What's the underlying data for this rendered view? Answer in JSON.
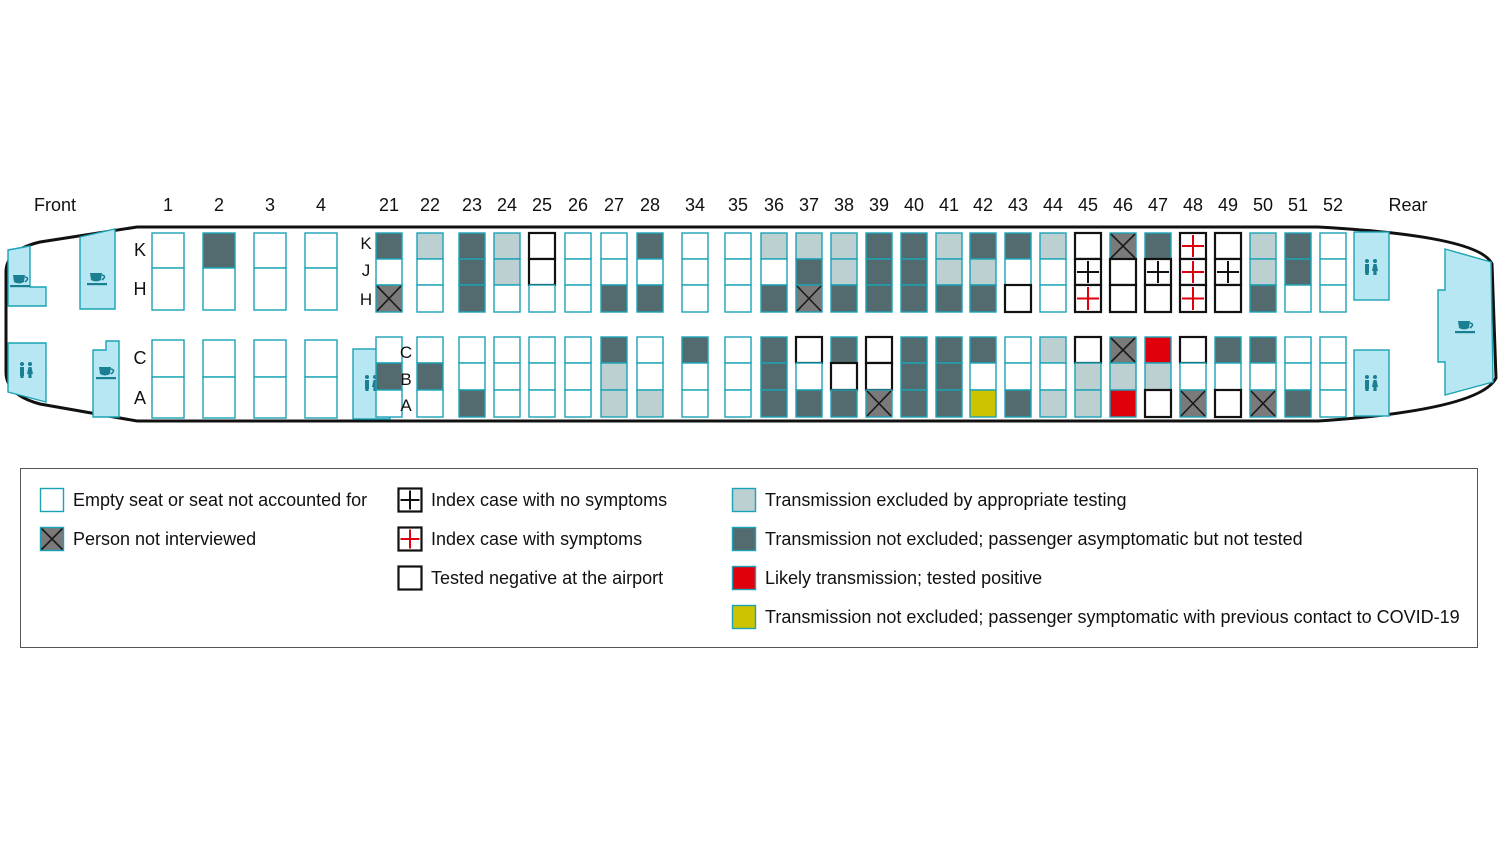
{
  "labels": {
    "front": "Front",
    "rear": "Rear",
    "rows_left": [
      "1",
      "2",
      "3",
      "4"
    ],
    "rows_main": [
      "21",
      "22",
      "23",
      "24",
      "25",
      "26",
      "27",
      "28",
      "34",
      "35",
      "36",
      "37",
      "38",
      "39",
      "40",
      "41",
      "42",
      "43",
      "44",
      "45",
      "46",
      "47",
      "48",
      "49",
      "50",
      "51",
      "52"
    ],
    "letters_front": [
      "K",
      "H",
      "C",
      "A"
    ],
    "letters_main": [
      "K",
      "J",
      "H",
      "C",
      "B",
      "A"
    ]
  },
  "colors": {
    "empty_outline": "#1aa3b5",
    "not_excluded_dark": "#536b6f",
    "excluded_light": "#bccfd1",
    "positive_red": "#e0000d",
    "symptomatic_yellow": "#cdc300",
    "not_interviewed": "#7a7a7a",
    "galley_fill": "#b7e7f2"
  },
  "icons": {
    "galley": "cup-icon",
    "lavatory": "restroom-icon"
  },
  "status_codes": {
    "e": "Empty seat or seat not accounted for",
    "x": "Person not interviewed",
    "i": "Index case with no symptoms",
    "s": "Index case with symptoms",
    "n": "Tested negative at the airport",
    "g": "Transmission excluded by appropriate testing",
    "d": "Transmission not excluded; passenger asymptomatic but not tested",
    "r": "Likely transmission; tested positive",
    "y": "Transmission not excluded; passenger symptomatic with previous contact to COVID-19"
  },
  "front_seats": {
    "1": {
      "K": "e",
      "H": "e",
      "C": "e",
      "A": "e"
    },
    "2": {
      "K": "d",
      "H": "e",
      "C": "e",
      "A": "e"
    },
    "3": {
      "K": "e",
      "H": "e",
      "C": "e",
      "A": "e"
    },
    "4": {
      "K": "e",
      "H": "e",
      "C": "e",
      "A": "e"
    }
  },
  "seats": {
    "21": {
      "K": "d",
      "J": "e",
      "H": "x",
      "C": "e",
      "B": "d",
      "A": "e"
    },
    "22": {
      "K": "g",
      "J": "e",
      "H": "e",
      "C": "e",
      "B": "d",
      "A": "e"
    },
    "23": {
      "K": "d",
      "J": "d",
      "H": "d",
      "C": "e",
      "B": "e",
      "A": "d"
    },
    "24": {
      "K": "g",
      "J": "g",
      "H": "e",
      "C": "e",
      "B": "e",
      "A": "e"
    },
    "25": {
      "K": "n",
      "J": "n",
      "H": "e",
      "C": "e",
      "B": "e",
      "A": "e"
    },
    "26": {
      "K": "e",
      "J": "e",
      "H": "e",
      "C": "e",
      "B": "e",
      "A": "e"
    },
    "27": {
      "K": "e",
      "J": "e",
      "H": "d",
      "C": "d",
      "B": "g",
      "A": "g"
    },
    "28": {
      "K": "d",
      "J": "e",
      "H": "d",
      "C": "e",
      "B": "e",
      "A": "g"
    },
    "34": {
      "K": "e",
      "J": "e",
      "H": "e",
      "C": "d",
      "B": "e",
      "A": "e"
    },
    "35": {
      "K": "e",
      "J": "e",
      "H": "e",
      "C": "e",
      "B": "e",
      "A": "e"
    },
    "36": {
      "K": "g",
      "J": "e",
      "H": "d",
      "C": "d",
      "B": "d",
      "A": "d"
    },
    "37": {
      "K": "g",
      "J": "d",
      "H": "x",
      "C": "n",
      "B": "e",
      "A": "d"
    },
    "38": {
      "K": "g",
      "J": "g",
      "H": "d",
      "C": "d",
      "B": "n",
      "A": "d"
    },
    "39": {
      "K": "d",
      "J": "d",
      "H": "d",
      "C": "n",
      "B": "n",
      "A": "x"
    },
    "40": {
      "K": "d",
      "J": "d",
      "H": "d",
      "C": "d",
      "B": "d",
      "A": "d"
    },
    "41": {
      "K": "g",
      "J": "g",
      "H": "d",
      "C": "d",
      "B": "d",
      "A": "d"
    },
    "42": {
      "K": "d",
      "J": "g",
      "H": "d",
      "C": "d",
      "B": "e",
      "A": "y"
    },
    "43": {
      "K": "d",
      "J": "e",
      "H": "n",
      "C": "e",
      "B": "e",
      "A": "d"
    },
    "44": {
      "K": "g",
      "J": "e",
      "H": "e",
      "C": "g",
      "B": "e",
      "A": "g"
    },
    "45": {
      "K": "n",
      "J": "i",
      "H": "s",
      "C": "n",
      "B": "g",
      "A": "g"
    },
    "46": {
      "K": "x",
      "J": "n",
      "H": "n",
      "C": "x",
      "B": "g",
      "A": "r"
    },
    "47": {
      "K": "d",
      "J": "i",
      "H": "n",
      "C": "r",
      "B": "g",
      "A": "n"
    },
    "48": {
      "K": "s",
      "J": "s",
      "H": "s",
      "C": "n",
      "B": "e",
      "A": "x"
    },
    "49": {
      "K": "n",
      "J": "i",
      "H": "n",
      "C": "d",
      "B": "e",
      "A": "n"
    },
    "50": {
      "K": "g",
      "J": "g",
      "H": "d",
      "C": "d",
      "B": "e",
      "A": "x"
    },
    "51": {
      "K": "d",
      "J": "d",
      "H": "e",
      "C": "e",
      "B": "e",
      "A": "d"
    },
    "52": {
      "K": "e",
      "J": "e",
      "H": "e",
      "C": "e",
      "B": "e",
      "A": "e"
    }
  },
  "legend": {
    "items": [
      {
        "code": "e",
        "label": "Empty seat or seat not accounted for"
      },
      {
        "code": "x",
        "label": "Person not interviewed"
      },
      {
        "code": "i",
        "label": "Index case with no symptoms"
      },
      {
        "code": "s",
        "label": "Index case with symptoms"
      },
      {
        "code": "n",
        "label": "Tested negative at the airport"
      },
      {
        "code": "g",
        "label": "Transmission excluded by appropriate testing"
      },
      {
        "code": "d",
        "label": "Transmission not excluded; passenger asymptomatic but not tested"
      },
      {
        "code": "r",
        "label": "Likely transmission; tested positive"
      },
      {
        "code": "y",
        "label": "Transmission not excluded; passenger symptomatic with previous contact to COVID-19"
      }
    ]
  }
}
